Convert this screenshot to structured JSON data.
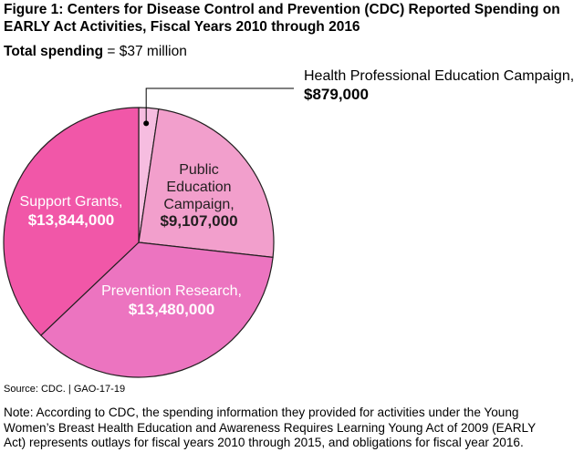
{
  "figure": {
    "title_line1": "Figure 1: Centers for Disease Control and Prevention (CDC) Reported Spending on",
    "title_line2": "EARLY Act Activities, Fiscal Years 2010 through 2016",
    "total_label": "Total spending",
    "total_value": "= $37 million",
    "source": "Source: CDC.  |  GAO-17-19",
    "note_line1": "Note: According to CDC, the spending information they provided for activities under the Young",
    "note_line2": "Women’s Breast Health Education and Awareness Requires Learning Young Act of 2009 (EARLY",
    "note_line3": "Act) represents outlays for fiscal years 2010 through 2015, and obligations for fiscal year 2016."
  },
  "chart_data": {
    "type": "pie",
    "title": "Figure 1: Centers for Disease Control and Prevention (CDC) Reported Spending on EARLY Act Activities, Fiscal Years 2010 through 2016",
    "slices": [
      {
        "name": "Health Professional Education Campaign",
        "label_lines": [
          "Health Professional Education Campaign,"
        ],
        "value": 879000,
        "value_label": "$879,000",
        "color": "#f6bde0",
        "label_color": "#231f20"
      },
      {
        "name": "Public Education Campaign",
        "label_lines": [
          "Public",
          "Education",
          "Campaign,"
        ],
        "value": 9107000,
        "value_label": "$9,107,000",
        "color": "#f29fcc",
        "label_color": "#231f20"
      },
      {
        "name": "Prevention Research",
        "label_lines": [
          "Prevention Research,"
        ],
        "value": 13480000,
        "value_label": "$13,480,000",
        "color": "#ec74c0",
        "label_color": "#ffffff"
      },
      {
        "name": "Support Grants",
        "label_lines": [
          "Support Grants,"
        ],
        "value": 13844000,
        "value_label": "$13,844,000",
        "color": "#f157a8",
        "label_color": "#ffffff"
      }
    ]
  }
}
